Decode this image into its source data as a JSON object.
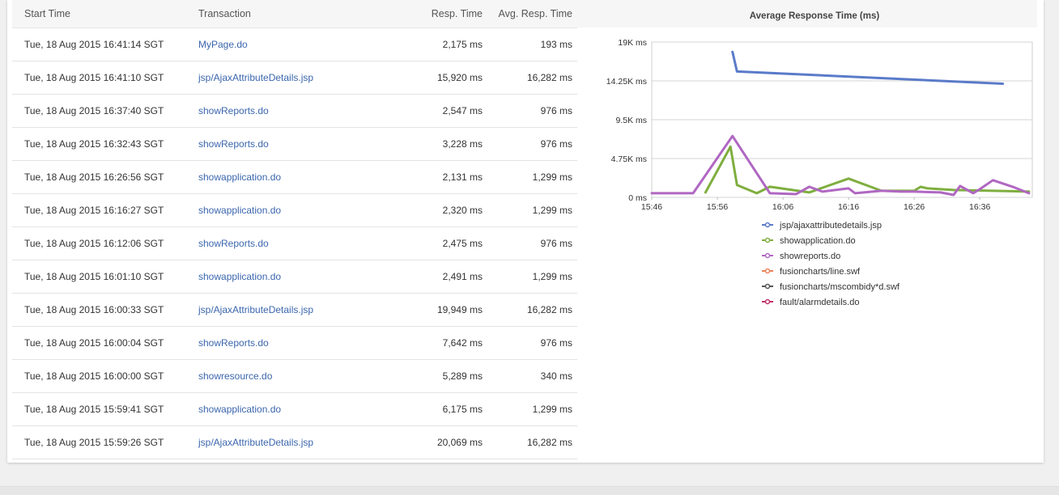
{
  "table": {
    "headers": {
      "start_time": "Start Time",
      "transaction": "Transaction",
      "resp_time": "Resp. Time",
      "avg_resp_time": "Avg. Resp. Time"
    },
    "rows": [
      {
        "start": "Tue, 18 Aug 2015 16:41:14 SGT",
        "txn": "MyPage.do",
        "resp": "2,175 ms",
        "avg": "193 ms"
      },
      {
        "start": "Tue, 18 Aug 2015 16:41:10 SGT",
        "txn": "jsp/AjaxAttributeDetails.jsp",
        "resp": "15,920 ms",
        "avg": "16,282 ms"
      },
      {
        "start": "Tue, 18 Aug 2015 16:37:40 SGT",
        "txn": "showReports.do",
        "resp": "2,547 ms",
        "avg": "976 ms"
      },
      {
        "start": "Tue, 18 Aug 2015 16:32:43 SGT",
        "txn": "showReports.do",
        "resp": "3,228 ms",
        "avg": "976 ms"
      },
      {
        "start": "Tue, 18 Aug 2015 16:26:56 SGT",
        "txn": "showapplication.do",
        "resp": "2,131 ms",
        "avg": "1,299 ms"
      },
      {
        "start": "Tue, 18 Aug 2015 16:16:27 SGT",
        "txn": "showapplication.do",
        "resp": "2,320 ms",
        "avg": "1,299 ms"
      },
      {
        "start": "Tue, 18 Aug 2015 16:12:06 SGT",
        "txn": "showReports.do",
        "resp": "2,475 ms",
        "avg": "976 ms"
      },
      {
        "start": "Tue, 18 Aug 2015 16:01:10 SGT",
        "txn": "showapplication.do",
        "resp": "2,491 ms",
        "avg": "1,299 ms"
      },
      {
        "start": "Tue, 18 Aug 2015 16:00:33 SGT",
        "txn": "jsp/AjaxAttributeDetails.jsp",
        "resp": "19,949 ms",
        "avg": "16,282 ms"
      },
      {
        "start": "Tue, 18 Aug 2015 16:00:04 SGT",
        "txn": "showReports.do",
        "resp": "7,642 ms",
        "avg": "976 ms"
      },
      {
        "start": "Tue, 18 Aug 2015 16:00:00 SGT",
        "txn": "showresource.do",
        "resp": "5,289 ms",
        "avg": "340 ms"
      },
      {
        "start": "Tue, 18 Aug 2015 15:59:41 SGT",
        "txn": "showapplication.do",
        "resp": "6,175 ms",
        "avg": "1,299 ms"
      },
      {
        "start": "Tue, 18 Aug 2015 15:59:26 SGT",
        "txn": "jsp/AjaxAttributeDetails.jsp",
        "resp": "20,069 ms",
        "avg": "16,282 ms"
      }
    ]
  },
  "colors": {
    "link": "#3b66ad",
    "series_blue": "#5a7bc9",
    "series_green": "#7fae3f",
    "series_purple": "#b067c2",
    "series_orange": "#e8845a",
    "series_dark": "#555555",
    "series_crimson": "#c2306a"
  },
  "chart_data": {
    "type": "line",
    "title": "Average Response Time (ms)",
    "xlabel": "",
    "ylabel": "",
    "x_ticks": [
      "15:46",
      "15:56",
      "16:06",
      "16:16",
      "16:26",
      "16:36"
    ],
    "y_ticks": [
      "19K ms",
      "14.25K ms",
      "9.5K ms",
      "4.75K ms",
      "0 ms"
    ],
    "x_range_minutes": [
      0,
      58
    ],
    "ylim": [
      0,
      19000
    ],
    "grid": true,
    "legend_position": "bottom",
    "series": [
      {
        "name": "jsp/ajaxattributedetails.jsp",
        "color": "#5a7bc9",
        "points": [
          [
            12.3,
            17800
          ],
          [
            13.0,
            15400
          ],
          [
            53.5,
            13900
          ]
        ]
      },
      {
        "name": "showapplication.do",
        "color": "#7fae3f",
        "points": [
          [
            8.2,
            600
          ],
          [
            12.0,
            6200
          ],
          [
            13.0,
            1500
          ],
          [
            16.0,
            500
          ],
          [
            18.0,
            1300
          ],
          [
            24.0,
            600
          ],
          [
            30.0,
            2300
          ],
          [
            35.0,
            800
          ],
          [
            40.0,
            800
          ],
          [
            41.0,
            1300
          ],
          [
            42.0,
            1100
          ],
          [
            46.0,
            900
          ],
          [
            52.0,
            800
          ],
          [
            57.5,
            700
          ]
        ]
      },
      {
        "name": "showreports.do",
        "color": "#b067c2",
        "points": [
          [
            0,
            500
          ],
          [
            6.3,
            500
          ],
          [
            12.3,
            7500
          ],
          [
            18.0,
            500
          ],
          [
            22.0,
            400
          ],
          [
            24.0,
            1300
          ],
          [
            25.0,
            1000
          ],
          [
            26.0,
            700
          ],
          [
            28.0,
            900
          ],
          [
            29.0,
            1000
          ],
          [
            30.0,
            1100
          ],
          [
            31.0,
            500
          ],
          [
            35.0,
            800
          ],
          [
            38.0,
            700
          ],
          [
            40.0,
            700
          ],
          [
            44.0,
            600
          ],
          [
            46.0,
            300
          ],
          [
            47.0,
            1400
          ],
          [
            49.0,
            500
          ],
          [
            50.0,
            1000
          ],
          [
            52.0,
            2100
          ],
          [
            55.0,
            1300
          ],
          [
            57.5,
            500
          ]
        ]
      },
      {
        "name": "fusioncharts/line.swf",
        "color": "#e8845a",
        "points": []
      },
      {
        "name": "fusioncharts/mscombidy*d.swf",
        "color": "#555555",
        "points": []
      },
      {
        "name": "fault/alarmdetails.do",
        "color": "#c2306a",
        "points": []
      }
    ]
  }
}
